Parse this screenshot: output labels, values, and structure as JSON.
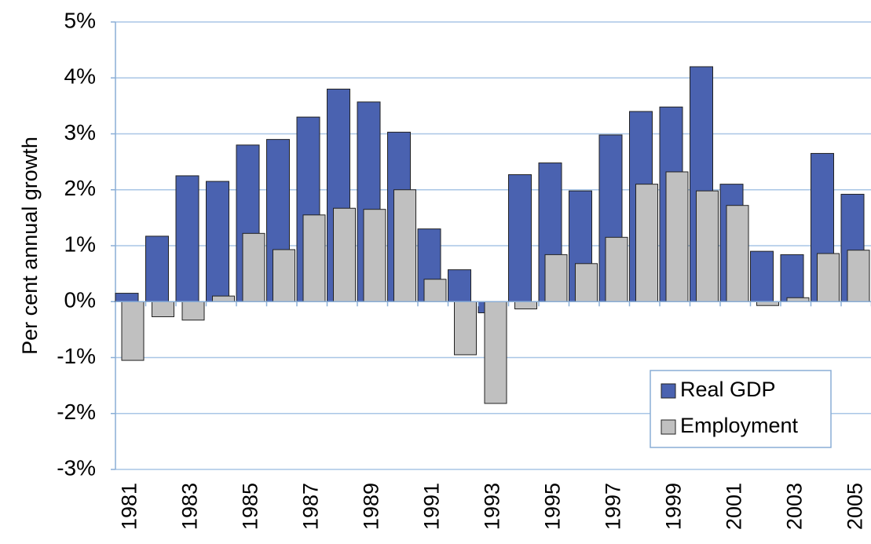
{
  "chart_data": {
    "type": "bar",
    "y_label": "Per cent annual growth",
    "categories": [
      "1981",
      null,
      "1983",
      null,
      "1985",
      null,
      "1987",
      null,
      "1989",
      null,
      "1991",
      null,
      "1993",
      null,
      "1995",
      null,
      "1997",
      null,
      "1999",
      null,
      "2001",
      null,
      "2003",
      null,
      "2005"
    ],
    "series": [
      {
        "name": "Real GDP",
        "color": "#4a62b0",
        "values": [
          0.15,
          1.17,
          2.25,
          2.15,
          2.8,
          2.9,
          3.3,
          3.8,
          3.57,
          3.03,
          1.3,
          0.57,
          -0.2,
          2.27,
          2.48,
          1.98,
          2.98,
          3.4,
          3.48,
          4.2,
          2.1,
          0.9,
          0.84,
          2.65,
          1.92
        ]
      },
      {
        "name": "Employment",
        "color": "#c0c0c0",
        "values": [
          -1.05,
          -0.27,
          -0.33,
          0.1,
          1.22,
          0.93,
          1.55,
          1.67,
          1.65,
          2.0,
          0.4,
          -0.95,
          -1.82,
          -0.13,
          0.84,
          0.68,
          1.15,
          2.1,
          2.32,
          1.98,
          1.72,
          -0.07,
          0.07,
          0.86,
          0.92
        ]
      }
    ],
    "ylim": [
      -3,
      5
    ],
    "yticks": [
      {
        "value": -3,
        "label": "-3%"
      },
      {
        "value": -2,
        "label": "-2%"
      },
      {
        "value": -1,
        "label": "-1%"
      },
      {
        "value": 0,
        "label": "0%"
      },
      {
        "value": 1,
        "label": "1%"
      },
      {
        "value": 2,
        "label": "2%"
      },
      {
        "value": 3,
        "label": "3%"
      },
      {
        "value": 4,
        "label": "4%"
      },
      {
        "value": 5,
        "label": "5%"
      }
    ],
    "grid": true,
    "legend": "lower right"
  }
}
